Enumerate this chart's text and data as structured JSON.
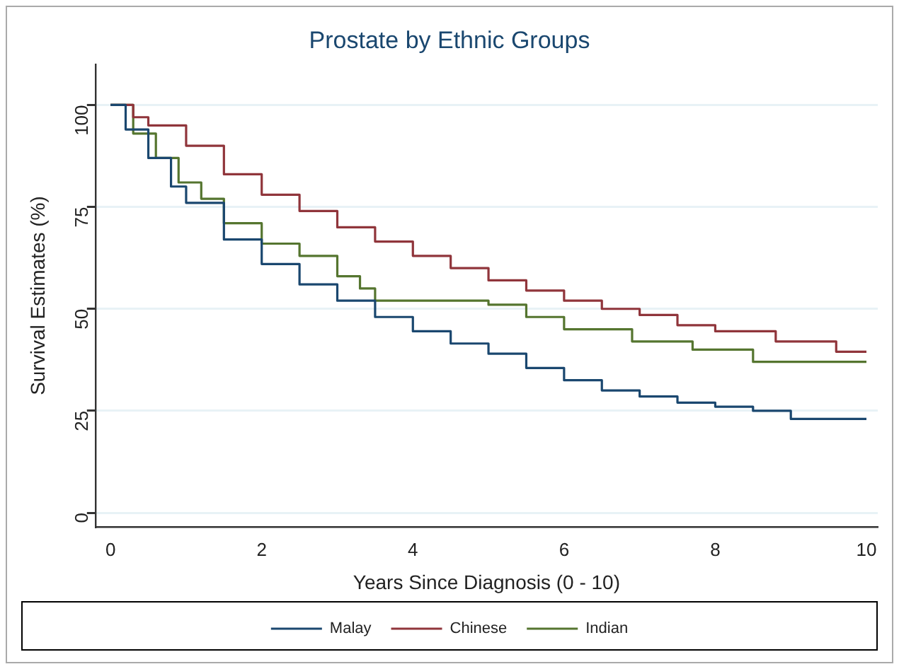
{
  "chart_data": {
    "type": "step",
    "title": "Prostate by Ethnic Groups",
    "xlabel": "Years Since Diagnosis (0 - 10)",
    "ylabel": "Survival Estimates (%)",
    "xlim": [
      -0.2,
      10.15
    ],
    "xticks": [
      0,
      2,
      4,
      6,
      8,
      10
    ],
    "ylim": [
      -3.5,
      110
    ],
    "yticks": [
      0,
      25,
      50,
      75,
      100
    ],
    "grid": "y",
    "legend": "bottom",
    "line_style": "solid",
    "marker": "none",
    "series": [
      {
        "name": "Malay",
        "color": "#1a476f",
        "x": [
          0,
          0.2,
          0.5,
          0.8,
          1,
          1.5,
          2,
          2.5,
          3,
          3.5,
          4,
          4.5,
          5,
          5.5,
          6,
          6.5,
          7,
          7.5,
          8,
          8.5,
          9,
          10
        ],
        "values": [
          100,
          94,
          87,
          80,
          76,
          67,
          61,
          56,
          52,
          48,
          44.5,
          41.5,
          39,
          35.5,
          32.5,
          30,
          28.5,
          27,
          26,
          25,
          23,
          23
        ]
      },
      {
        "name": "Chinese",
        "color": "#90353b",
        "x": [
          0,
          0.3,
          0.5,
          1,
          1.5,
          2,
          2.5,
          3,
          3.5,
          4,
          4.5,
          5,
          5.5,
          6,
          6.5,
          7,
          7.5,
          8,
          8.8,
          9.6,
          10
        ],
        "values": [
          100,
          97,
          95,
          90,
          83,
          78,
          74,
          70,
          66.5,
          63,
          60,
          57,
          54.5,
          52,
          50,
          48.5,
          46,
          44.5,
          42,
          39.5,
          39.5
        ]
      },
      {
        "name": "Indian",
        "color": "#55752f",
        "x": [
          0,
          0.3,
          0.6,
          0.9,
          1.2,
          1.5,
          2,
          2.5,
          3,
          3.3,
          3.5,
          4.5,
          5,
          5.5,
          6,
          6.9,
          7.7,
          8.5,
          10
        ],
        "values": [
          100,
          93,
          87,
          81,
          77,
          71,
          66,
          63,
          58,
          55,
          52,
          52,
          51,
          48,
          45,
          42,
          40,
          37,
          37
        ]
      }
    ]
  }
}
